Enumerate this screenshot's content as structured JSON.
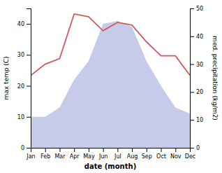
{
  "chart_data": {
    "type": "line",
    "xlabel": "date (month)",
    "ylabel": "max temp (C)",
    "y2label": "med. precipitation (kg/m2)",
    "categories": [
      "Jan",
      "Feb",
      "Mar",
      "Apr",
      "May",
      "Jun",
      "Jul",
      "Aug",
      "Sep",
      "Oct",
      "Nov",
      "Dec"
    ],
    "series": [
      {
        "type": "area",
        "color": "#c5cbe8",
        "values": [
          10,
          10,
          13,
          22,
          28,
          40,
          41,
          39,
          28,
          20,
          13,
          11
        ]
      },
      {
        "type": "line",
        "axis": "y2",
        "color": "#cd5c5c",
        "values": [
          26,
          30,
          32,
          48,
          47,
          42,
          45,
          44,
          38,
          33,
          33,
          26
        ]
      }
    ],
    "ylim": [
      0,
      45
    ],
    "yticks": [
      0,
      10,
      20,
      30,
      40
    ],
    "y2lim": [
      0,
      50
    ],
    "y2ticks": [
      0,
      10,
      20,
      30,
      40,
      50
    ]
  }
}
